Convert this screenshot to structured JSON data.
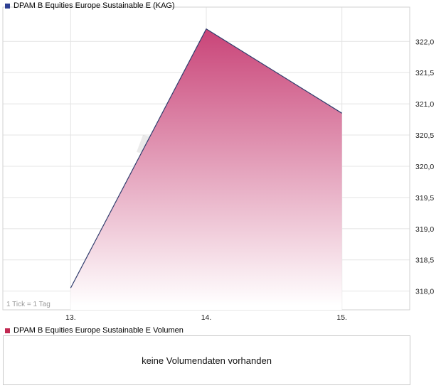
{
  "price_chart": {
    "legend_label": "DPAM B Equities Europe Sustainable E (KAG)",
    "legend_color": "#2e3f92",
    "tick_note": "1 Tick = 1 Tag"
  },
  "volume_panel": {
    "legend_label": "DPAM B Equities Europe Sustainable E Volumen",
    "legend_color": "#c22a52",
    "message": "keine Volumendaten vorhanden"
  },
  "chart_data": [
    {
      "type": "area",
      "title": "DPAM B Equities Europe Sustainable E (KAG)",
      "x": [
        13,
        14,
        15
      ],
      "x_tick_labels": [
        "13.",
        "14.",
        "15."
      ],
      "values": [
        318.05,
        322.2,
        320.85
      ],
      "xlim": [
        12.5,
        15.5
      ],
      "ylim": [
        317.7,
        322.55
      ],
      "y_ticks": [
        318.0,
        318.5,
        319.0,
        319.5,
        320.0,
        320.5,
        321.0,
        321.5,
        322.0
      ],
      "y_tick_labels": [
        "318,0",
        "318,5",
        "319,0",
        "319,5",
        "320,0",
        "320,5",
        "321,0",
        "321,5",
        "322,0"
      ],
      "grid": true,
      "legend_position": "top-left",
      "xlabel": "",
      "ylabel": "",
      "line_color": "#303d6d",
      "fill_gradient_top": "#c94478",
      "fill_gradient_bottom": "#ffffff",
      "note": "1 Tick = 1 Tag"
    },
    {
      "type": "bar",
      "title": "DPAM B Equities Europe Sustainable E Volumen",
      "categories": [],
      "values": [],
      "message": "keine Volumendaten vorhanden"
    }
  ]
}
